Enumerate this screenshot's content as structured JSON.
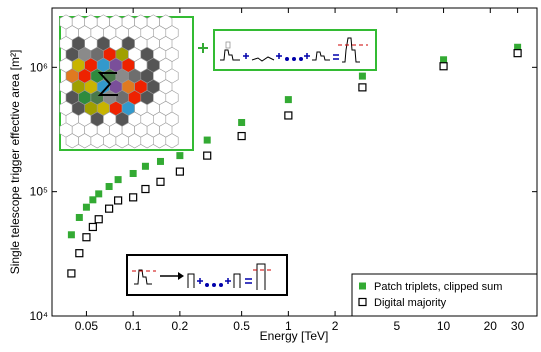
{
  "chart_data": {
    "type": "scatter",
    "x_label": "Energy [TeV]",
    "y_label": "Single telescope trigger effective area [m²]",
    "log_x": true,
    "log_y": true,
    "xlim": [
      0.03,
      40
    ],
    "ylim": [
      10000,
      3000000
    ],
    "xticks": [
      0.05,
      0.1,
      0.2,
      0.5,
      1,
      2,
      5,
      10,
      20,
      30
    ],
    "yticks": [
      {
        "value": 10000,
        "label": "10⁴"
      },
      {
        "value": 100000,
        "label": "10⁵"
      },
      {
        "value": 1000000,
        "label": "10⁶"
      }
    ],
    "legend_position": "lower right",
    "x": [
      0.04,
      0.045,
      0.05,
      0.055,
      0.06,
      0.07,
      0.08,
      0.1,
      0.12,
      0.15,
      0.2,
      0.3,
      0.5,
      1,
      3,
      10,
      30
    ],
    "series": [
      {
        "name": "Patch triplets, clipped sum",
        "color": "#33aa33",
        "filled": true,
        "values": [
          45000,
          62000,
          75000,
          86000,
          96000,
          110000,
          125000,
          140000,
          160000,
          175000,
          195000,
          260000,
          360000,
          550000,
          850000,
          1150000,
          1450000
        ]
      },
      {
        "name": "Digital majority",
        "color": "#000000",
        "filled": false,
        "values": [
          22000,
          32000,
          43000,
          52000,
          60000,
          73000,
          85000,
          90000,
          105000,
          120000,
          145000,
          195000,
          280000,
          410000,
          690000,
          1020000,
          1300000
        ]
      }
    ]
  }
}
